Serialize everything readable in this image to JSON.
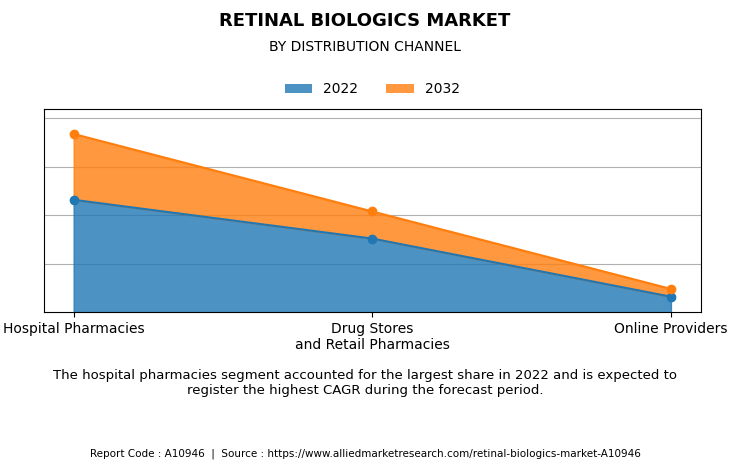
{
  "chart_data": {
    "type": "area",
    "title": "RETINAL BIOLOGICS MARKET",
    "subtitle": "BY DISTRIBUTION CHANNEL",
    "categories": [
      "Hospital Pharmacies",
      "Drug Stores\nand Retail Pharmacies",
      "Online Providers"
    ],
    "series": [
      {
        "name": "2022",
        "values": [
          0.58,
          0.38,
          0.08
        ]
      },
      {
        "name": "2032",
        "values": [
          0.92,
          0.52,
          0.12
        ]
      }
    ],
    "ylim": [
      0,
      1.05
    ],
    "yticks": [
      0.25,
      0.5,
      0.75,
      1.0
    ],
    "grid": "y",
    "tick_labels": "x",
    "marker": "circle",
    "legend": "top",
    "annotations": [
      "The hospital pharmacies segment accounted for the largest share in 2022 and is expected to\nregister the highest CAGR during the forecast period.",
      "Report Code : A10946  |  Source : https://www.alliedmarketresearch.com/retinal-biologics-market-A10946"
    ]
  }
}
